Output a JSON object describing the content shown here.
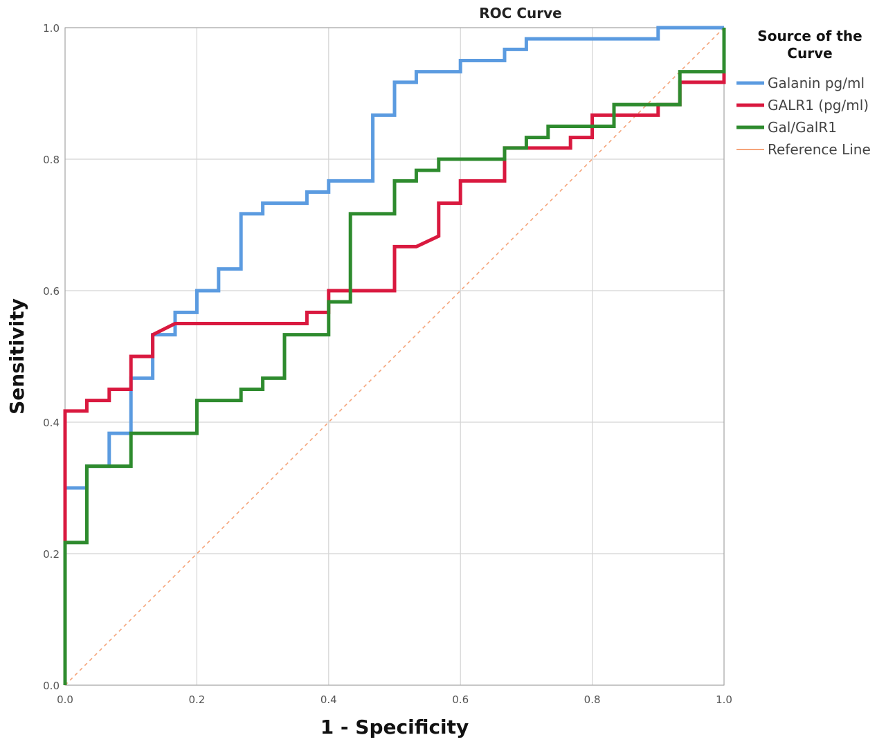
{
  "chart_data": {
    "type": "line",
    "title": "ROC Curve",
    "xlabel": "1 - Specificity",
    "ylabel": "Sensitivity",
    "xlim": [
      0,
      1
    ],
    "ylim": [
      0,
      1
    ],
    "x_ticks": [
      "0.0",
      "0.2",
      "0.4",
      "0.6",
      "0.8",
      "1.0"
    ],
    "y_ticks": [
      "0.0",
      "0.2",
      "0.4",
      "0.6",
      "0.8",
      "1.0"
    ],
    "grid": true,
    "legend": {
      "title": "Source of the Curve",
      "position": "right"
    },
    "series": [
      {
        "name": "Galanin pg/ml",
        "color": "#5b9be0",
        "points": [
          [
            0,
            0
          ],
          [
            0,
            0.3
          ],
          [
            0.033,
            0.3
          ],
          [
            0.033,
            0.333
          ],
          [
            0.067,
            0.333
          ],
          [
            0.067,
            0.383
          ],
          [
            0.1,
            0.383
          ],
          [
            0.1,
            0.467
          ],
          [
            0.133,
            0.467
          ],
          [
            0.133,
            0.533
          ],
          [
            0.167,
            0.533
          ],
          [
            0.167,
            0.567
          ],
          [
            0.2,
            0.567
          ],
          [
            0.2,
            0.6
          ],
          [
            0.233,
            0.6
          ],
          [
            0.233,
            0.633
          ],
          [
            0.267,
            0.633
          ],
          [
            0.267,
            0.717
          ],
          [
            0.3,
            0.717
          ],
          [
            0.3,
            0.733
          ],
          [
            0.367,
            0.733
          ],
          [
            0.367,
            0.75
          ],
          [
            0.4,
            0.75
          ],
          [
            0.4,
            0.767
          ],
          [
            0.467,
            0.767
          ],
          [
            0.467,
            0.867
          ],
          [
            0.5,
            0.867
          ],
          [
            0.5,
            0.917
          ],
          [
            0.533,
            0.917
          ],
          [
            0.533,
            0.933
          ],
          [
            0.6,
            0.933
          ],
          [
            0.6,
            0.95
          ],
          [
            0.667,
            0.95
          ],
          [
            0.667,
            0.967
          ],
          [
            0.7,
            0.967
          ],
          [
            0.7,
            0.983
          ],
          [
            0.9,
            0.983
          ],
          [
            0.9,
            1.0
          ],
          [
            1.0,
            1.0
          ]
        ]
      },
      {
        "name": "GALR1 (pg/ml)",
        "color": "#d9193f",
        "points": [
          [
            0,
            0.217
          ],
          [
            0,
            0.417
          ],
          [
            0.033,
            0.417
          ],
          [
            0.033,
            0.433
          ],
          [
            0.067,
            0.433
          ],
          [
            0.067,
            0.45
          ],
          [
            0.1,
            0.45
          ],
          [
            0.1,
            0.5
          ],
          [
            0.133,
            0.5
          ],
          [
            0.133,
            0.533
          ],
          [
            0.167,
            0.55
          ],
          [
            0.367,
            0.55
          ],
          [
            0.367,
            0.567
          ],
          [
            0.4,
            0.567
          ],
          [
            0.4,
            0.6
          ],
          [
            0.5,
            0.6
          ],
          [
            0.5,
            0.667
          ],
          [
            0.533,
            0.667
          ],
          [
            0.567,
            0.683
          ],
          [
            0.567,
            0.733
          ],
          [
            0.6,
            0.733
          ],
          [
            0.6,
            0.767
          ],
          [
            0.667,
            0.767
          ],
          [
            0.667,
            0.817
          ],
          [
            0.767,
            0.817
          ],
          [
            0.767,
            0.833
          ],
          [
            0.8,
            0.833
          ],
          [
            0.8,
            0.867
          ],
          [
            0.9,
            0.867
          ],
          [
            0.9,
            0.883
          ],
          [
            0.933,
            0.883
          ],
          [
            0.933,
            0.917
          ],
          [
            1.0,
            0.917
          ],
          [
            1.0,
            1.0
          ]
        ]
      },
      {
        "name": "Gal/GalR1",
        "color": "#2e8b2e",
        "points": [
          [
            0,
            0
          ],
          [
            0,
            0.217
          ],
          [
            0.033,
            0.217
          ],
          [
            0.033,
            0.333
          ],
          [
            0.1,
            0.333
          ],
          [
            0.1,
            0.383
          ],
          [
            0.2,
            0.383
          ],
          [
            0.2,
            0.433
          ],
          [
            0.267,
            0.433
          ],
          [
            0.267,
            0.45
          ],
          [
            0.3,
            0.45
          ],
          [
            0.3,
            0.467
          ],
          [
            0.333,
            0.467
          ],
          [
            0.333,
            0.533
          ],
          [
            0.4,
            0.533
          ],
          [
            0.4,
            0.583
          ],
          [
            0.433,
            0.583
          ],
          [
            0.433,
            0.717
          ],
          [
            0.5,
            0.717
          ],
          [
            0.5,
            0.767
          ],
          [
            0.533,
            0.767
          ],
          [
            0.533,
            0.783
          ],
          [
            0.567,
            0.783
          ],
          [
            0.567,
            0.8
          ],
          [
            0.667,
            0.8
          ],
          [
            0.667,
            0.817
          ],
          [
            0.7,
            0.817
          ],
          [
            0.7,
            0.833
          ],
          [
            0.733,
            0.833
          ],
          [
            0.733,
            0.85
          ],
          [
            0.833,
            0.85
          ],
          [
            0.833,
            0.883
          ],
          [
            0.933,
            0.883
          ],
          [
            0.933,
            0.933
          ],
          [
            1.0,
            0.933
          ],
          [
            1.0,
            1.0
          ]
        ]
      },
      {
        "name": "Reference Line",
        "color": "#f5a47a",
        "dashed": true,
        "points": [
          [
            0,
            0
          ],
          [
            1,
            1
          ]
        ]
      }
    ]
  }
}
